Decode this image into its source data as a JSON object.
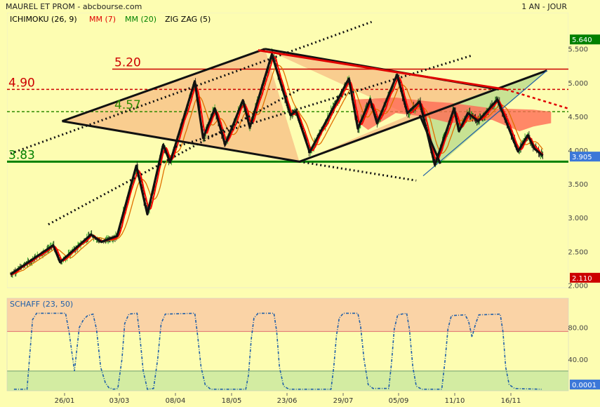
{
  "header": {
    "title": "MAUREL ET PROM - abcbourse.com",
    "period": "1 AN - JOUR"
  },
  "legend": [
    {
      "label": "ICHIMOKU (26, 9)",
      "color": "#000000"
    },
    {
      "label": "MM (7)",
      "color": "#e00000"
    },
    {
      "label": "MM (20)",
      "color": "#008000"
    },
    {
      "label": "ZIG ZAG (5)",
      "color": "#000000"
    }
  ],
  "colors": {
    "background": "#fdfdb1",
    "cloud": "#ff6a55",
    "mm7": "#ff0000",
    "mm20": "#e07000",
    "zigzag": "#111111",
    "price_label_last": "#3c78d8",
    "price_label_top": "#008000",
    "price_label_low": "#cc0000",
    "schaff_line": "#1f5fa8",
    "schaff_upper_zone": "#fad3a6",
    "schaff_lower_zone": "#d3eca2"
  },
  "chart_data": [
    {
      "type": "candlestick",
      "title": "MAUREL ET PROM",
      "y_ticks": [
        2.0,
        2.5,
        3.0,
        3.5,
        4.0,
        4.5,
        5.0,
        5.5
      ],
      "y_tick_labels": [
        "2.000",
        "2.500",
        "3.000",
        "3.500",
        "4.000",
        "4.500",
        "5.000",
        "5.500"
      ],
      "ylim": [
        1.95,
        5.72
      ],
      "x_tick_labels": [
        "26/01",
        "03/03",
        "08/04",
        "18/05",
        "23/06",
        "29/07",
        "05/09",
        "11/10",
        "16/11"
      ],
      "price_labels": {
        "top": "5.640",
        "last": "3.905",
        "low": "2.110"
      },
      "levels": [
        {
          "value": 5.2,
          "label": "5.20",
          "style": "solid",
          "color": "#cc0000"
        },
        {
          "value": 4.9,
          "label": "4.90",
          "style": "dashed",
          "color": "#cc0000"
        },
        {
          "value": 4.57,
          "label": "4.57",
          "style": "dashed",
          "color": "#2e8b00"
        },
        {
          "value": 3.83,
          "label": "3.83",
          "style": "solid",
          "color": "#008000"
        }
      ],
      "zigzag": [
        [
          0,
          2.16
        ],
        [
          62,
          2.59
        ],
        [
          72,
          2.34
        ],
        [
          117,
          2.75
        ],
        [
          132,
          2.64
        ],
        [
          155,
          2.73
        ],
        [
          183,
          3.77
        ],
        [
          199,
          3.05
        ],
        [
          222,
          4.08
        ],
        [
          232,
          3.82
        ],
        [
          268,
          5.02
        ],
        [
          280,
          4.18
        ],
        [
          297,
          4.62
        ],
        [
          312,
          4.08
        ],
        [
          338,
          4.74
        ],
        [
          348,
          4.34
        ],
        [
          380,
          5.42
        ],
        [
          407,
          4.52
        ],
        [
          415,
          4.58
        ],
        [
          435,
          3.97
        ],
        [
          492,
          5.06
        ],
        [
          505,
          4.32
        ],
        [
          523,
          4.75
        ],
        [
          533,
          4.4
        ],
        [
          562,
          5.12
        ],
        [
          577,
          4.55
        ],
        [
          595,
          4.72
        ],
        [
          617,
          3.78
        ],
        [
          645,
          4.62
        ],
        [
          652,
          4.28
        ],
        [
          665,
          4.55
        ],
        [
          680,
          4.43
        ],
        [
          708,
          4.75
        ],
        [
          738,
          3.98
        ],
        [
          752,
          4.22
        ],
        [
          762,
          4.02
        ],
        [
          774,
          3.92
        ]
      ]
    },
    {
      "type": "line",
      "title": "SCHAFF (23, 50)",
      "series_label": "SCHAFF (23, 50)",
      "y_ticks": [
        40,
        80
      ],
      "y_tick_labels": [
        "40.00",
        "80.00"
      ],
      "ylim": [
        0,
        117
      ],
      "last_value": "0.0001",
      "zones": [
        {
          "from": 0,
          "to": 25
        },
        {
          "from": 75,
          "to": 117
        }
      ],
      "points": [
        [
          5,
          2
        ],
        [
          24,
          2
        ],
        [
          28,
          45
        ],
        [
          32,
          90
        ],
        [
          38,
          98
        ],
        [
          80,
          98
        ],
        [
          85,
          75
        ],
        [
          93,
          25
        ],
        [
          100,
          80
        ],
        [
          106,
          90
        ],
        [
          112,
          95
        ],
        [
          120,
          97
        ],
        [
          125,
          78
        ],
        [
          131,
          30
        ],
        [
          138,
          10
        ],
        [
          143,
          4
        ],
        [
          150,
          2
        ],
        [
          156,
          3
        ],
        [
          162,
          40
        ],
        [
          166,
          85
        ],
        [
          172,
          97
        ],
        [
          184,
          98
        ],
        [
          188,
          70
        ],
        [
          193,
          25
        ],
        [
          199,
          2
        ],
        [
          208,
          3
        ],
        [
          214,
          40
        ],
        [
          219,
          85
        ],
        [
          225,
          97
        ],
        [
          268,
          98
        ],
        [
          272,
          70
        ],
        [
          277,
          30
        ],
        [
          283,
          8
        ],
        [
          291,
          2
        ],
        [
          342,
          2
        ],
        [
          346,
          20
        ],
        [
          350,
          65
        ],
        [
          354,
          92
        ],
        [
          360,
          98
        ],
        [
          383,
          98
        ],
        [
          387,
          75
        ],
        [
          391,
          30
        ],
        [
          397,
          6
        ],
        [
          405,
          2
        ],
        [
          466,
          2
        ],
        [
          470,
          30
        ],
        [
          474,
          70
        ],
        [
          478,
          92
        ],
        [
          484,
          98
        ],
        [
          505,
          98
        ],
        [
          509,
          82
        ],
        [
          514,
          40
        ],
        [
          520,
          8
        ],
        [
          527,
          3
        ],
        [
          550,
          3
        ],
        [
          554,
          35
        ],
        [
          558,
          78
        ],
        [
          563,
          96
        ],
        [
          576,
          98
        ],
        [
          580,
          78
        ],
        [
          585,
          30
        ],
        [
          590,
          6
        ],
        [
          598,
          2
        ],
        [
          627,
          2
        ],
        [
          632,
          40
        ],
        [
          636,
          78
        ],
        [
          641,
          95
        ],
        [
          661,
          96
        ],
        [
          666,
          88
        ],
        [
          671,
          68
        ],
        [
          676,
          84
        ],
        [
          681,
          96
        ],
        [
          712,
          97
        ],
        [
          716,
          75
        ],
        [
          720,
          30
        ],
        [
          725,
          8
        ],
        [
          733,
          3
        ],
        [
          772,
          2
        ]
      ]
    }
  ]
}
